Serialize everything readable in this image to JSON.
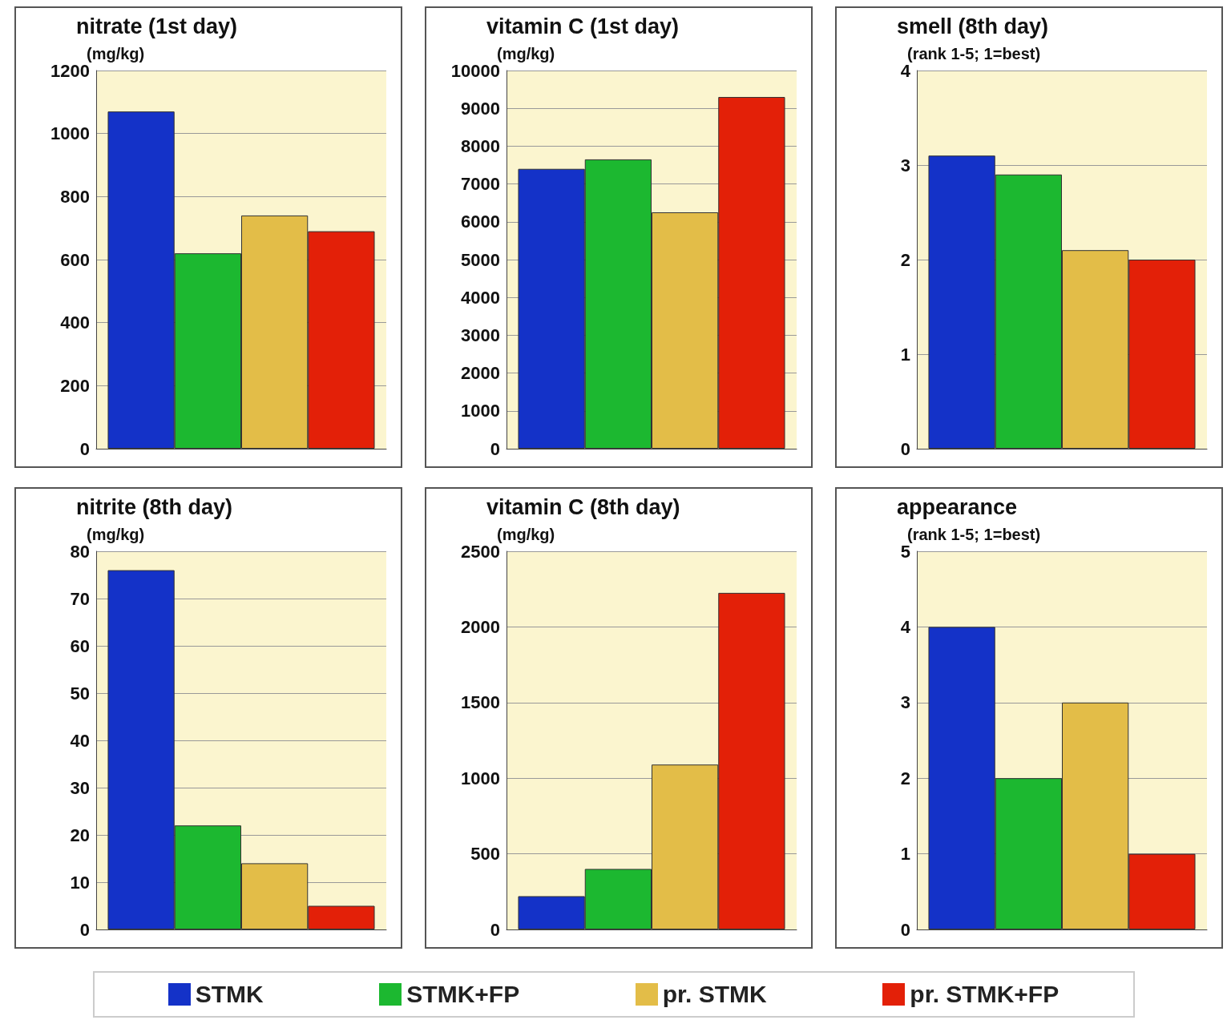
{
  "chart_data": [
    {
      "type": "bar",
      "title": "nitrate (1st day)",
      "ylabel": "(mg/kg)",
      "categories": [
        null
      ],
      "ylim": [
        0,
        1200
      ],
      "yticks": [
        0,
        200,
        400,
        600,
        800,
        1000,
        1200
      ],
      "grid": "y",
      "legend": "bottom",
      "series": [
        {
          "name": "STMK",
          "color": "#1432c8",
          "values": [
            1070
          ]
        },
        {
          "name": "STMK+FP",
          "color": "#1cb830",
          "values": [
            620
          ]
        },
        {
          "name": "pr. STMK",
          "color": "#e3bd48",
          "values": [
            740
          ]
        },
        {
          "name": "pr. STMK+FP",
          "color": "#e32008",
          "values": [
            690
          ]
        }
      ]
    },
    {
      "type": "bar",
      "title": "vitamin C (1st day)",
      "ylabel": "(mg/kg)",
      "categories": [
        null
      ],
      "ylim": [
        0,
        10000
      ],
      "yticks": [
        0,
        1000,
        2000,
        3000,
        4000,
        5000,
        6000,
        7000,
        8000,
        9000,
        10000
      ],
      "grid": "y",
      "series": [
        {
          "color": "#1432c8",
          "values": [
            7400
          ]
        },
        {
          "color": "#1cb830",
          "values": [
            7650
          ]
        },
        {
          "color": "#e3bd48",
          "values": [
            6250
          ]
        },
        {
          "color": "#e32008",
          "values": [
            9300
          ]
        }
      ]
    },
    {
      "type": "bar",
      "title": "smell (8th day)",
      "ylabel": "(rank 1-5; 1=best)",
      "categories": [
        null
      ],
      "ylim": [
        0,
        4
      ],
      "yticks": [
        0,
        1,
        2,
        3,
        4
      ],
      "grid": "y",
      "series": [
        {
          "color": "#1432c8",
          "values": [
            3.1
          ]
        },
        {
          "color": "#1cb830",
          "values": [
            2.9
          ]
        },
        {
          "color": "#e3bd48",
          "values": [
            2.1
          ]
        },
        {
          "color": "#e32008",
          "values": [
            2.0
          ]
        }
      ]
    },
    {
      "type": "bar",
      "title": "nitrite (8th day)",
      "ylabel": "(mg/kg)",
      "categories": [
        null
      ],
      "ylim": [
        0,
        80
      ],
      "yticks": [
        0,
        10,
        20,
        30,
        40,
        50,
        60,
        70,
        80
      ],
      "grid": "y",
      "series": [
        {
          "color": "#1432c8",
          "values": [
            76
          ]
        },
        {
          "color": "#1cb830",
          "values": [
            22
          ]
        },
        {
          "color": "#e3bd48",
          "values": [
            14
          ]
        },
        {
          "color": "#e32008",
          "values": [
            5
          ]
        }
      ]
    },
    {
      "type": "bar",
      "title": "vitamin C (8th day)",
      "ylabel": "(mg/kg)",
      "categories": [
        null
      ],
      "ylim": [
        0,
        2500
      ],
      "yticks": [
        0,
        500,
        1000,
        1500,
        2000,
        2500
      ],
      "grid": "y",
      "series": [
        {
          "color": "#1432c8",
          "values": [
            220
          ]
        },
        {
          "color": "#1cb830",
          "values": [
            400
          ]
        },
        {
          "color": "#e3bd48",
          "values": [
            1090
          ]
        },
        {
          "color": "#e32008",
          "values": [
            2225
          ]
        }
      ]
    },
    {
      "type": "bar",
      "title": "appearance",
      "ylabel": "(rank 1-5; 1=best)",
      "categories": [
        null
      ],
      "ylim": [
        0,
        5
      ],
      "yticks": [
        0,
        1,
        2,
        3,
        4,
        5
      ],
      "grid": "y",
      "series": [
        {
          "color": "#1432c8",
          "values": [
            4
          ]
        },
        {
          "color": "#1cb830",
          "values": [
            2
          ]
        },
        {
          "color": "#e3bd48",
          "values": [
            3
          ]
        },
        {
          "color": "#e32008",
          "values": [
            1
          ]
        }
      ]
    }
  ]
}
